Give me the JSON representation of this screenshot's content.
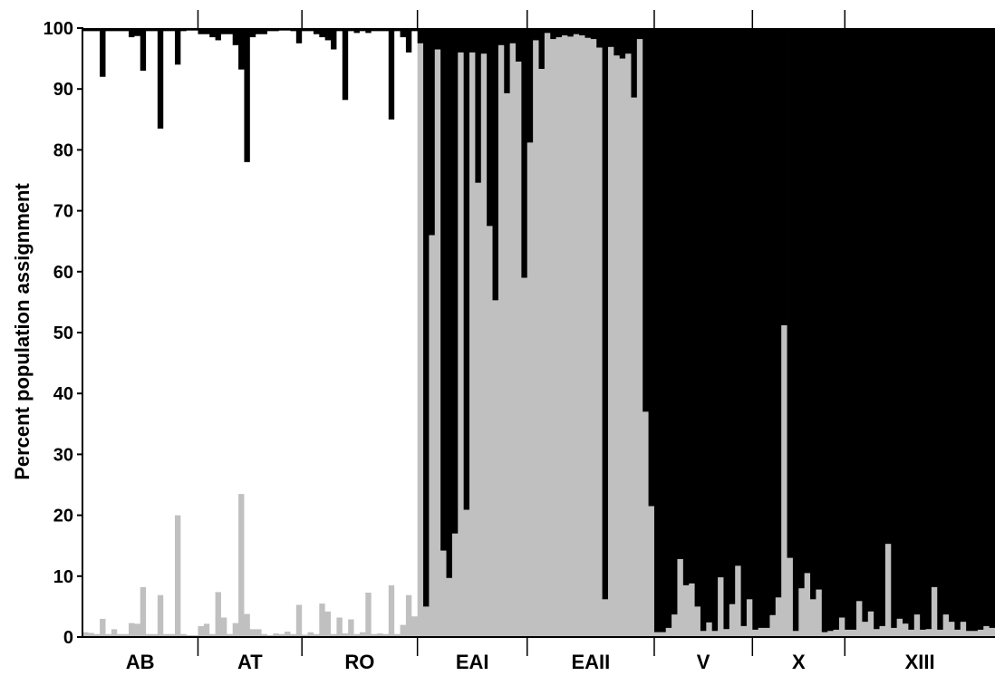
{
  "chart_data": {
    "type": "bar",
    "stacked": true,
    "ylabel": "Percent population assignment",
    "xlabel": "",
    "ylim": [
      0,
      100
    ],
    "yticks": [
      "0",
      "10",
      "20",
      "30",
      "40",
      "50",
      "60",
      "70",
      "80",
      "90",
      "100"
    ],
    "grid": false,
    "legend": "none",
    "colors": {
      "white_cluster": "#ffffff",
      "gray_cluster": "#c0c0c0",
      "black_cluster": "#000000",
      "axis": "#000000"
    },
    "groups": [
      {
        "label": "AB",
        "gray": [
          0.8,
          0.7,
          0.5,
          3.0,
          0.5,
          1.3,
          0.5,
          0.5,
          2.3,
          2.2,
          8.2,
          0.5,
          0.5,
          6.9,
          0.5,
          0.5,
          20.0,
          0.5,
          0.3,
          0.3
        ],
        "black": [
          0.5,
          0.5,
          0.5,
          8.0,
          0.5,
          0.5,
          0.5,
          0.5,
          1.5,
          1.3,
          7.0,
          0.5,
          0.5,
          16.5,
          0.5,
          0.5,
          6.0,
          0.5,
          0.4,
          0.4
        ]
      },
      {
        "label": "AT",
        "gray": [
          1.8,
          2.2,
          0.5,
          7.4,
          3.2,
          0.5,
          2.3,
          23.5,
          3.8,
          1.3,
          1.3,
          0.5,
          0.3,
          0.6,
          0.5,
          0.9,
          0.5,
          5.3
        ],
        "black": [
          1.0,
          1.0,
          1.5,
          2.0,
          1.0,
          1.0,
          2.8,
          6.8,
          22.0,
          1.5,
          1.0,
          1.0,
          0.5,
          0.5,
          0.4,
          0.4,
          0.5,
          2.5
        ]
      },
      {
        "label": "RO",
        "gray": [
          0.4,
          0.8,
          0.5,
          5.5,
          4.2,
          0.5,
          3.2,
          0.6,
          2.9,
          0.5,
          0.8,
          7.3,
          0.5,
          0.6,
          0.5,
          8.5,
          0.5,
          2.0,
          6.9,
          3.4
        ],
        "black": [
          0.5,
          0.5,
          1.0,
          1.5,
          2.0,
          3.5,
          0.5,
          11.8,
          0.5,
          0.8,
          0.5,
          0.8,
          0.5,
          0.5,
          0.5,
          15.0,
          0.5,
          1.5,
          4.0,
          0.5
        ]
      },
      {
        "label": "EAI",
        "gray": [
          97.5,
          5.0,
          66.0,
          96.5,
          14.2,
          9.7,
          17.0,
          96.0,
          20.9,
          96.0,
          74.6,
          95.8,
          67.5,
          55.3,
          97.2,
          89.3,
          97.5,
          94.5,
          59.0
        ],
        "black": [
          2.5,
          95.0,
          34.0,
          3.5,
          85.8,
          90.3,
          83.0,
          4.0,
          79.1,
          4.0,
          25.4,
          4.2,
          32.5,
          44.7,
          2.8,
          10.7,
          2.5,
          5.5,
          41.0
        ]
      },
      {
        "label": "EAII",
        "gray": [
          81.2,
          98.0,
          93.3,
          99.2,
          98.2,
          98.5,
          98.8,
          98.6,
          99.0,
          98.8,
          98.4,
          98.2,
          96.8,
          6.2,
          96.9,
          95.5,
          95.0,
          95.8,
          88.6,
          98.2,
          37.0,
          21.5
        ],
        "black": [
          18.8,
          2.0,
          6.7,
          0.8,
          1.8,
          1.5,
          1.2,
          1.4,
          1.0,
          1.2,
          1.6,
          1.8,
          3.2,
          93.8,
          3.1,
          4.5,
          5.0,
          4.2,
          11.4,
          1.8,
          63.0,
          78.5
        ]
      },
      {
        "label": "V",
        "gray": [
          0.8,
          0.8,
          1.5,
          3.7,
          12.8,
          8.5,
          8.8,
          5.0,
          1.0,
          2.4,
          1.0,
          9.8,
          1.3,
          5.4,
          11.7,
          1.8,
          6.2
        ],
        "black": [
          99.2,
          99.2,
          98.5,
          96.3,
          87.2,
          91.5,
          91.2,
          95.0,
          99.0,
          97.6,
          99.0,
          90.2,
          98.7,
          94.6,
          88.3,
          98.2,
          93.8
        ]
      },
      {
        "label": "X",
        "gray": [
          1.2,
          1.5,
          1.5,
          3.6,
          6.5,
          51.2,
          13.0,
          1.0,
          8.0,
          10.5,
          6.2,
          7.8,
          0.8,
          1.0,
          1.2,
          3.2
        ],
        "black": [
          98.8,
          98.5,
          98.5,
          96.4,
          93.5,
          48.8,
          87.0,
          99.0,
          92.0,
          89.5,
          93.8,
          92.2,
          99.2,
          99.0,
          98.8,
          96.8
        ]
      },
      {
        "label": "XIII",
        "gray": [
          1.2,
          1.2,
          5.9,
          2.5,
          4.2,
          1.3,
          1.8,
          15.3,
          1.5,
          3.0,
          2.2,
          1.2,
          3.7,
          1.2,
          1.3,
          8.2,
          1.2,
          3.7,
          2.5,
          1.2,
          2.5,
          1.0,
          1.0,
          1.2,
          1.8,
          1.5
        ],
        "black": [
          98.8,
          98.8,
          94.1,
          97.5,
          95.8,
          98.7,
          98.2,
          84.7,
          98.5,
          97.0,
          97.8,
          98.8,
          96.3,
          98.8,
          98.7,
          91.8,
          98.8,
          96.3,
          97.5,
          98.8,
          97.5,
          99.0,
          99.0,
          98.8,
          98.2,
          98.5
        ]
      }
    ]
  }
}
